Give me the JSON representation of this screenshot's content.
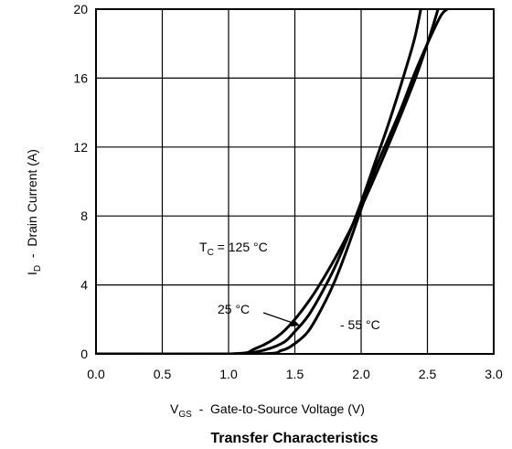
{
  "chart_data": {
    "type": "line",
    "title": "Transfer Characteristics",
    "xlabel_main": "V",
    "xlabel_sub": "GS",
    "xlabel_rest": "  -  Gate-to-Source Voltage (V)",
    "ylabel_main": "I",
    "ylabel_sub": "D",
    "ylabel_rest": "  -  Drain Current (A)",
    "xlim": [
      0.0,
      3.0
    ],
    "ylim": [
      0,
      20
    ],
    "x_ticks": [
      "0.0",
      "0.5",
      "1.0",
      "1.5",
      "2.0",
      "2.5",
      "3.0"
    ],
    "y_ticks": [
      "0",
      "4",
      "8",
      "12",
      "16",
      "20"
    ],
    "grid": true,
    "series": [
      {
        "label_main": "T",
        "label_sub": "C",
        "label_rest": " = 125 °C",
        "x": [
          0.0,
          1.0,
          1.2,
          1.4,
          1.6,
          1.8,
          2.0,
          2.2,
          2.4,
          2.5,
          2.58
        ],
        "y": [
          0.0,
          0.0,
          0.3,
          1.2,
          3.0,
          5.5,
          8.5,
          12.0,
          15.8,
          18.0,
          20.0
        ]
      },
      {
        "label": "25 °C",
        "x": [
          0.0,
          1.0,
          1.2,
          1.4,
          1.5,
          1.6,
          1.7,
          1.8,
          1.9,
          2.0,
          2.1,
          2.2,
          2.3,
          2.4,
          2.45
        ],
        "y": [
          0.0,
          0.0,
          0.1,
          0.6,
          1.3,
          2.2,
          3.5,
          5.0,
          6.8,
          8.8,
          11.0,
          13.2,
          15.6,
          18.2,
          20.0
        ]
      },
      {
        "label": "- 55 °C",
        "x": [
          0.0,
          1.2,
          1.4,
          1.5,
          1.6,
          1.7,
          1.8,
          1.9,
          2.0,
          2.1,
          2.2,
          2.3,
          2.4,
          2.5,
          2.6,
          2.65
        ],
        "y": [
          0.0,
          0.0,
          0.2,
          0.6,
          1.3,
          2.6,
          4.2,
          6.2,
          8.4,
          10.6,
          12.4,
          14.2,
          16.2,
          18.0,
          19.6,
          20.0
        ]
      }
    ]
  }
}
